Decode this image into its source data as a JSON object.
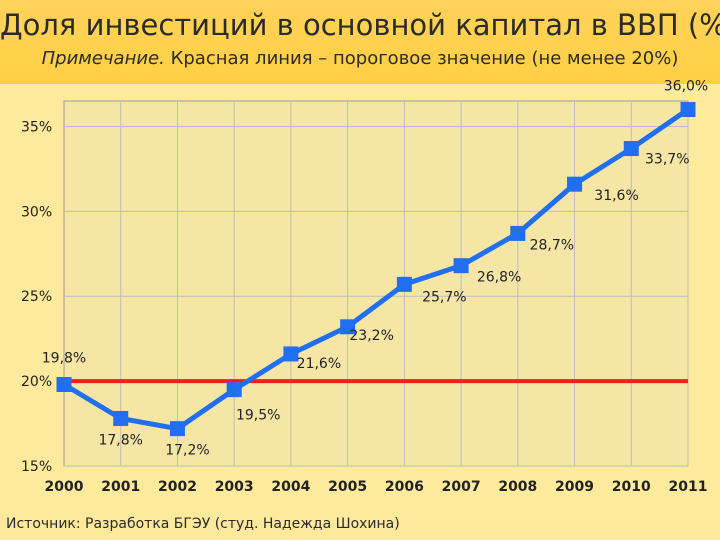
{
  "header": {
    "title": "Доля инвестиций в основной капитал в ВВП (%)",
    "note_prefix": "Примечание.",
    "note_text": " Красная линия – пороговое значение (не менее 20%)"
  },
  "source": "Источник: Разработка БГЭУ (студ. Надежда Шохина)",
  "colors": {
    "series": "#1f6ff0",
    "threshold": "#ff1a1a",
    "plot_area": "#f6e6a6",
    "grid": "#bdbdbd"
  },
  "chart_data": {
    "type": "line",
    "x": [
      "2000",
      "2001",
      "2002",
      "2003",
      "2004",
      "2005",
      "2006",
      "2007",
      "2008",
      "2009",
      "2010",
      "2011"
    ],
    "series": [
      {
        "values": [
          19.8,
          17.8,
          17.2,
          19.5,
          21.6,
          23.2,
          25.7,
          26.8,
          28.7,
          31.6,
          33.7,
          36.0
        ],
        "labels": [
          "19,8%",
          "17,8%",
          "17,2%",
          "19,5%",
          "21,6%",
          "23,2%",
          "25,7%",
          "26,8%",
          "28,7%",
          "31,6%",
          "33,7%",
          "36,0%"
        ]
      }
    ],
    "threshold": 20,
    "ylim": [
      15,
      36.5
    ],
    "yticks": [
      15,
      20,
      25,
      30,
      35
    ],
    "ytick_labels": [
      "15%",
      "20%",
      "25%",
      "30%",
      "35%"
    ],
    "grid": true
  }
}
